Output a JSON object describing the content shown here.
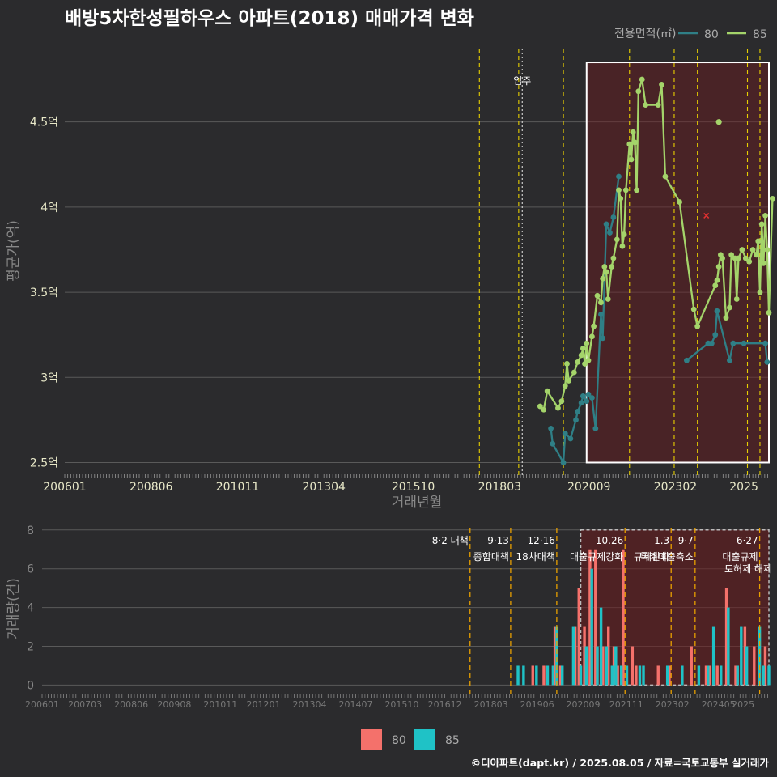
{
  "title": "배방5차한성필하우스 아파트(2018) 매매가격 변화",
  "source": "©디아파트(dapt.kr) / 2025.08.05 / 자료=국토교통부 실거래가",
  "colors": {
    "s80": "#2f7f86",
    "s85": "#a4d46a",
    "bar80": "#f4716b",
    "bar85": "#1fc2c6",
    "highlight": "#6e1b1e",
    "vline": "#e8d000",
    "vline2": "#e8a000"
  },
  "chart_data": [
    {
      "type": "line",
      "title": "배방5차한성필하우스 아파트(2018) 매매가격 변화",
      "xlabel": "거래년월",
      "ylabel": "평균가(억)",
      "x_ticks": [
        "200601",
        "200806",
        "201011",
        "201304",
        "201510",
        "201803",
        "202009",
        "202302",
        "2025"
      ],
      "y_ticks": [
        2.5,
        3,
        3.5,
        4,
        4.5
      ],
      "y_tick_labels": [
        "2.5억",
        "3억",
        "3.5억",
        "4억",
        "4.5억"
      ],
      "xlim": [
        2006.0,
        2025.7
      ],
      "ylim": [
        2.45,
        4.95
      ],
      "legend_title": "전용면적(㎡)",
      "legend": [
        "80",
        "85"
      ],
      "move_in_label": "입주",
      "move_in_x": 2018.8,
      "vlines": [
        2017.6,
        2018.7,
        2019.95,
        2021.8,
        2023.05,
        2023.7,
        2025.1,
        2025.45
      ],
      "highlight": [
        2020.6,
        2025.7
      ],
      "series": [
        {
          "name": "80",
          "points": [
            [
              2019.6,
              2.7
            ],
            [
              2019.65,
              2.61
            ],
            [
              2019.95,
              2.5
            ],
            [
              2020.0,
              2.67
            ],
            [
              2020.15,
              2.64
            ],
            [
              2020.3,
              2.75
            ],
            [
              2020.35,
              2.8
            ],
            [
              2020.45,
              2.85
            ],
            [
              2020.5,
              2.89
            ],
            [
              2020.6,
              2.86
            ],
            [
              2020.65,
              2.9
            ],
            [
              2020.75,
              2.88
            ],
            [
              2020.85,
              2.7
            ],
            [
              2021.0,
              3.37
            ],
            [
              2021.05,
              3.23
            ],
            [
              2021.15,
              3.9
            ],
            [
              2021.25,
              3.85
            ],
            [
              2021.35,
              3.94
            ],
            [
              2021.5,
              4.18
            ],
            [
              2023.4,
              3.1
            ],
            [
              2024.0,
              3.2
            ],
            [
              2024.1,
              3.2
            ],
            [
              2024.2,
              3.25
            ],
            [
              2024.25,
              3.39
            ],
            [
              2024.6,
              3.1
            ],
            [
              2024.7,
              3.2
            ],
            [
              2025.0,
              3.2
            ],
            [
              2025.6,
              3.2
            ],
            [
              2025.65,
              3.09
            ]
          ]
        },
        {
          "name": "85",
          "points": [
            [
              2019.3,
              2.83
            ],
            [
              2019.4,
              2.81
            ],
            [
              2019.5,
              2.92
            ],
            [
              2019.8,
              2.82
            ],
            [
              2019.9,
              2.86
            ],
            [
              2020.0,
              2.95
            ],
            [
              2020.05,
              3.08
            ],
            [
              2020.1,
              2.98
            ],
            [
              2020.25,
              3.03
            ],
            [
              2020.35,
              3.09
            ],
            [
              2020.45,
              3.13
            ],
            [
              2020.5,
              3.17
            ],
            [
              2020.55,
              3.08
            ],
            [
              2020.6,
              3.2
            ],
            [
              2020.65,
              3.1
            ],
            [
              2020.75,
              3.24
            ],
            [
              2020.8,
              3.3
            ],
            [
              2020.9,
              3.48
            ],
            [
              2021.0,
              3.44
            ],
            [
              2021.05,
              3.58
            ],
            [
              2021.1,
              3.65
            ],
            [
              2021.15,
              3.62
            ],
            [
              2021.2,
              3.46
            ],
            [
              2021.3,
              3.65
            ],
            [
              2021.35,
              3.7
            ],
            [
              2021.45,
              3.81
            ],
            [
              2021.5,
              4.1
            ],
            [
              2021.55,
              4.05
            ],
            [
              2021.6,
              3.77
            ],
            [
              2021.65,
              3.84
            ],
            [
              2021.7,
              4.1
            ],
            [
              2021.8,
              4.37
            ],
            [
              2021.85,
              4.28
            ],
            [
              2021.9,
              4.44
            ],
            [
              2021.95,
              4.38
            ],
            [
              2022.0,
              4.1
            ],
            [
              2022.05,
              4.68
            ],
            [
              2022.15,
              4.75
            ],
            [
              2022.25,
              4.6
            ],
            [
              2022.6,
              4.6
            ],
            [
              2022.7,
              4.72
            ],
            [
              2022.8,
              4.18
            ],
            [
              2023.2,
              4.03
            ],
            [
              2023.6,
              3.4
            ],
            [
              2023.7,
              3.3
            ],
            [
              2024.2,
              3.54
            ],
            [
              2024.25,
              3.57
            ],
            [
              2024.3,
              3.65
            ],
            [
              2024.35,
              3.72
            ],
            [
              2024.4,
              3.7
            ],
            [
              2024.5,
              3.35
            ],
            [
              2024.6,
              3.41
            ],
            [
              2024.65,
              3.72
            ],
            [
              2024.75,
              3.7
            ],
            [
              2024.8,
              3.46
            ],
            [
              2024.85,
              3.7
            ],
            [
              2024.95,
              3.75
            ],
            [
              2025.05,
              3.7
            ],
            [
              2025.15,
              3.68
            ],
            [
              2025.25,
              3.75
            ],
            [
              2025.35,
              3.72
            ],
            [
              2025.4,
              3.8
            ],
            [
              2025.45,
              3.5
            ],
            [
              2025.5,
              3.9
            ],
            [
              2025.55,
              3.67
            ],
            [
              2025.6,
              3.95
            ],
            [
              2025.65,
              3.75
            ],
            [
              2025.7,
              3.38
            ],
            [
              2025.8,
              4.05
            ]
          ]
        }
      ],
      "extra_points": [
        {
          "name": "85-outlier",
          "x": 2024.3,
          "y": 4.5
        },
        {
          "name": "x-marker",
          "x": 2023.95,
          "y": 3.95
        }
      ]
    },
    {
      "type": "bar",
      "ylabel": "거래량(건)",
      "x_ticks": [
        "200601",
        "200703",
        "200806",
        "200908",
        "201011",
        "201201",
        "201304",
        "201407",
        "201510",
        "201612",
        "201803",
        "201906",
        "202009",
        "202111",
        "202302",
        "202405",
        "2025"
      ],
      "y_ticks": [
        0,
        2,
        4,
        6,
        8
      ],
      "xlim": [
        2006.0,
        2025.7
      ],
      "ylim": [
        -0.4,
        8.2
      ],
      "highlight": [
        2020.6,
        2025.7
      ],
      "legend": [
        "80",
        "85"
      ],
      "events": [
        {
          "x": 2017.6,
          "label": "8·2 대책",
          "line2": ""
        },
        {
          "x": 2018.7,
          "label": "9·13",
          "line2": "종합대책"
        },
        {
          "x": 2019.95,
          "label": "12·16",
          "line2": "18차대책"
        },
        {
          "x": 2021.8,
          "label": "10.26",
          "line2": "대출규제강화"
        },
        {
          "x": 2023.05,
          "label": "1.3",
          "line2": "규제완화"
        },
        {
          "x": 2023.7,
          "label": "9·7",
          "line2": "특례대출축소"
        },
        {
          "x": 2025.45,
          "label": "6·27",
          "line2": "대출규제"
        }
      ],
      "extra_labels": [
        "토허제 해제"
      ],
      "series": [
        {
          "name": "80",
          "points": [
            [
              2019.3,
              1
            ],
            [
              2019.6,
              1
            ],
            [
              2019.9,
              3
            ],
            [
              2020.05,
              1
            ],
            [
              2020.45,
              3
            ],
            [
              2020.55,
              5
            ],
            [
              2020.7,
              3
            ],
            [
              2020.85,
              7
            ],
            [
              2021.0,
              7
            ],
            [
              2021.2,
              2
            ],
            [
              2021.35,
              3
            ],
            [
              2021.5,
              2
            ],
            [
              2021.6,
              1
            ],
            [
              2021.75,
              7
            ],
            [
              2022.0,
              2
            ],
            [
              2022.1,
              1
            ],
            [
              2022.7,
              1
            ],
            [
              2023.0,
              1
            ],
            [
              2023.6,
              2
            ],
            [
              2024.0,
              1
            ],
            [
              2024.1,
              1
            ],
            [
              2024.3,
              1
            ],
            [
              2024.55,
              5
            ],
            [
              2024.8,
              1
            ],
            [
              2025.05,
              3
            ],
            [
              2025.3,
              2
            ],
            [
              2025.6,
              2
            ]
          ]
        },
        {
          "name": "85",
          "points": [
            [
              2018.9,
              1
            ],
            [
              2019.05,
              1
            ],
            [
              2019.4,
              1
            ],
            [
              2019.7,
              1
            ],
            [
              2019.85,
              1
            ],
            [
              2019.95,
              3
            ],
            [
              2020.1,
              1
            ],
            [
              2020.4,
              3
            ],
            [
              2020.6,
              1
            ],
            [
              2020.75,
              2
            ],
            [
              2020.9,
              6
            ],
            [
              2021.05,
              2
            ],
            [
              2021.15,
              4
            ],
            [
              2021.3,
              2
            ],
            [
              2021.45,
              1
            ],
            [
              2021.55,
              2
            ],
            [
              2021.7,
              1
            ],
            [
              2021.85,
              1
            ],
            [
              2022.2,
              1
            ],
            [
              2022.3,
              1
            ],
            [
              2022.95,
              1
            ],
            [
              2023.35,
              1
            ],
            [
              2023.8,
              1
            ],
            [
              2024.05,
              1
            ],
            [
              2024.2,
              3
            ],
            [
              2024.4,
              1
            ],
            [
              2024.6,
              4
            ],
            [
              2024.85,
              1
            ],
            [
              2024.95,
              3
            ],
            [
              2025.1,
              2
            ],
            [
              2025.45,
              3
            ],
            [
              2025.55,
              1
            ],
            [
              2025.7,
              1
            ]
          ]
        }
      ]
    }
  ]
}
